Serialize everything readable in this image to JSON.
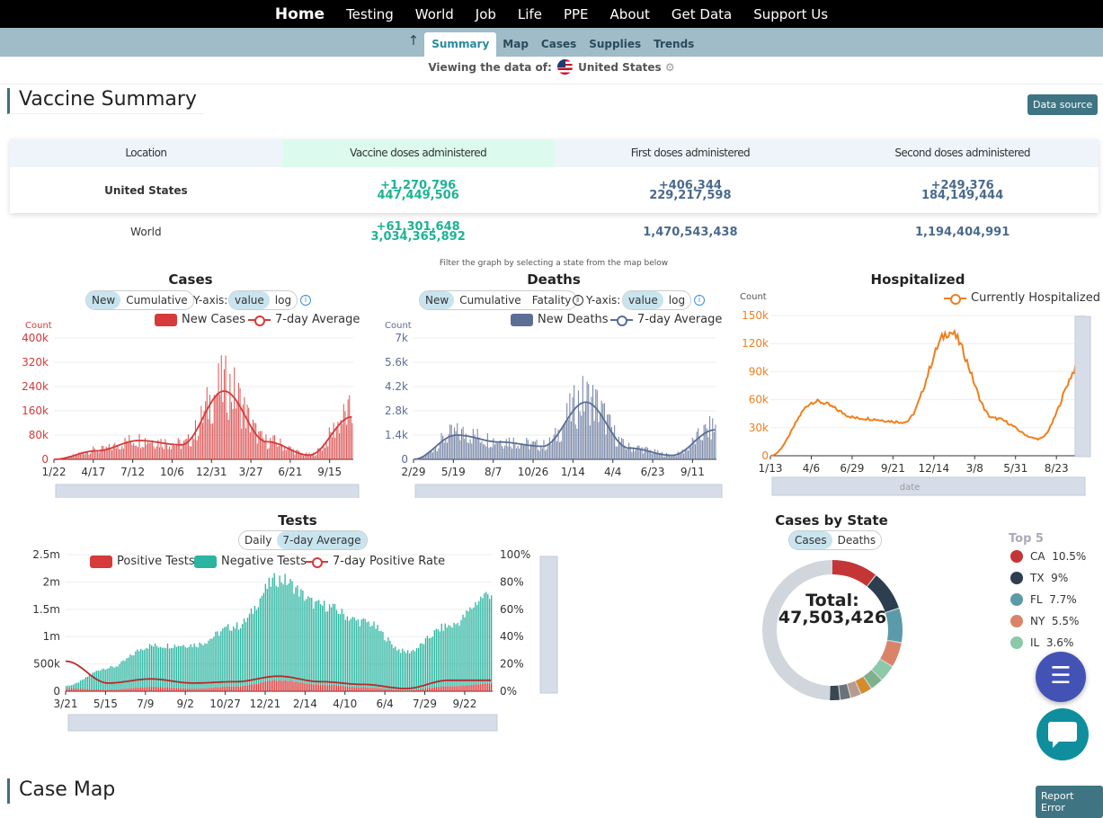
{
  "nav": {
    "items": [
      "Home",
      "Testing",
      "World",
      "Job",
      "Life",
      "PPE",
      "About",
      "Get Data",
      "Support Us"
    ]
  },
  "subnav": {
    "items": [
      "Summary",
      "Map",
      "Cases",
      "Supplies",
      "Trends"
    ],
    "active": "Summary"
  },
  "viewing": {
    "label": "Viewing the data of:",
    "country": "United States"
  },
  "vaccine_summary": {
    "title": "Vaccine Summary",
    "data_source_label": "Data source",
    "headers": [
      "Location",
      "Vaccine doses administered",
      "First doses administered",
      "Second doses administered"
    ],
    "rows": [
      {
        "location": "United States",
        "doses_delta": "+1,270,796",
        "doses": "447,449,506",
        "first_delta": "+406,344",
        "first": "229,217,598",
        "second_delta": "+249,376",
        "second": "184,149,444"
      },
      {
        "location": "World",
        "doses_delta": "+61,301,648",
        "doses": "3,034,365,892",
        "first": "1,470,543,438",
        "second": "1,194,404,991"
      }
    ]
  },
  "filter_note": "Filter the graph by selecting a state from the map below",
  "cases_chart": {
    "title": "Cases",
    "toggles": [
      "New",
      "Cumulative"
    ],
    "yaxis_label": "Y-axis:",
    "yaxis_toggles": [
      "value",
      "log"
    ],
    "legend": [
      "New Cases",
      "7-day Average"
    ],
    "ylabel": "Count",
    "yticks": [
      "400k",
      "320k",
      "240k",
      "160k",
      "80k",
      "0"
    ],
    "xticks": [
      "1/22",
      "4/17",
      "7/12",
      "10/6",
      "12/31",
      "3/27",
      "6/21",
      "9/15"
    ],
    "color": "#d63a3a"
  },
  "deaths_chart": {
    "title": "Deaths",
    "toggles": [
      "New",
      "Cumulative",
      "Fatality"
    ],
    "yaxis_label": "Y-axis:",
    "yaxis_toggles": [
      "value",
      "log"
    ],
    "legend": [
      "New Deaths",
      "7-day Average"
    ],
    "ylabel": "Count",
    "yticks": [
      "7k",
      "5.6k",
      "4.2k",
      "2.8k",
      "1.4k",
      "0"
    ],
    "xticks": [
      "2/29",
      "5/19",
      "8/7",
      "10/26",
      "1/14",
      "4/4",
      "6/23",
      "9/11"
    ],
    "color": "#5b6e95"
  },
  "hosp_chart": {
    "title": "Hospitalized",
    "legend": [
      "Currently Hospitalized"
    ],
    "ylabel": "Count",
    "yticks": [
      "150k",
      "120k",
      "90k",
      "60k",
      "30k",
      "0"
    ],
    "xticks": [
      "1/13",
      "4/6",
      "6/29",
      "9/21",
      "12/14",
      "3/8",
      "5/31",
      "8/23"
    ],
    "xlabel": "date",
    "color": "#f07f1d"
  },
  "tests_chart": {
    "title": "Tests",
    "toggles": [
      "Daily",
      "7-day Average"
    ],
    "legend": [
      "Positive Tests",
      "Negative Tests",
      "7-day Positive Rate"
    ],
    "yticks_left": [
      "2.5m",
      "2m",
      "1.5m",
      "1m",
      "500k",
      "0"
    ],
    "yticks_right": [
      "100%",
      "80%",
      "60%",
      "40%",
      "20%",
      "0%"
    ],
    "xticks": [
      "3/21",
      "5/15",
      "7/9",
      "9/2",
      "10/27",
      "12/21",
      "2/14",
      "4/10",
      "6/4",
      "7/29",
      "9/22"
    ],
    "colors": {
      "positive": "#d63a3a",
      "negative": "#2bb5a0"
    }
  },
  "state_chart": {
    "title": "Cases by State",
    "toggles": [
      "Cases",
      "Deaths"
    ],
    "total_label": "Total:",
    "total_value": "47,503,426",
    "top5_title": "Top 5",
    "top5": [
      {
        "state": "CA",
        "pct": "10.5%",
        "color": "#c43535"
      },
      {
        "state": "TX",
        "pct": "9%",
        "color": "#2c3e50"
      },
      {
        "state": "FL",
        "pct": "7.7%",
        "color": "#5b9aa8"
      },
      {
        "state": "NY",
        "pct": "5.5%",
        "color": "#d98468"
      },
      {
        "state": "IL",
        "pct": "3.6%",
        "color": "#8cc9a8"
      }
    ]
  },
  "case_map": {
    "title": "Case Map",
    "report_label": "Report Error"
  },
  "chart_data": [
    {
      "type": "bar",
      "title": "Cases",
      "ylabel": "Count",
      "ylim": [
        0,
        400000
      ],
      "x": [
        "1/22",
        "4/17",
        "7/12",
        "10/6",
        "12/31",
        "3/27",
        "6/21",
        "9/15"
      ],
      "series": [
        {
          "name": "New Cases",
          "values": [
            0,
            30000,
            65000,
            50000,
            240000,
            60000,
            15000,
            150000
          ]
        },
        {
          "name": "7-day Average",
          "values": [
            0,
            28000,
            62000,
            48000,
            225000,
            58000,
            14000,
            140000
          ]
        }
      ]
    },
    {
      "type": "bar",
      "title": "Deaths",
      "ylabel": "Count",
      "ylim": [
        0,
        7000
      ],
      "x": [
        "2/29",
        "5/19",
        "8/7",
        "10/26",
        "1/14",
        "4/4",
        "6/23",
        "9/11"
      ],
      "series": [
        {
          "name": "New Deaths",
          "values": [
            0,
            1500,
            1100,
            800,
            3500,
            700,
            250,
            1800
          ]
        },
        {
          "name": "7-day Average",
          "values": [
            0,
            1400,
            1000,
            750,
            3300,
            650,
            230,
            1700
          ]
        }
      ]
    },
    {
      "type": "line",
      "title": "Hospitalized",
      "ylabel": "Count",
      "xlabel": "date",
      "ylim": [
        0,
        150000
      ],
      "x": [
        "1/13",
        "4/6",
        "6/29",
        "9/21",
        "12/14",
        "3/8",
        "5/31",
        "8/23"
      ],
      "series": [
        {
          "name": "Currently Hospitalized",
          "values": [
            0,
            58000,
            40000,
            36000,
            132000,
            40000,
            18000,
            100000
          ]
        }
      ]
    },
    {
      "type": "bar",
      "title": "Tests",
      "ylim": [
        0,
        2500000
      ],
      "x": [
        "3/21",
        "5/15",
        "7/9",
        "9/2",
        "10/27",
        "12/21",
        "2/14",
        "4/10",
        "6/4",
        "7/29",
        "9/22"
      ],
      "series": [
        {
          "name": "Positive Tests",
          "values": [
            50000,
            30000,
            80000,
            50000,
            90000,
            200000,
            120000,
            70000,
            20000,
            90000,
            140000
          ]
        },
        {
          "name": "Negative Tests",
          "values": [
            50000,
            400000,
            750000,
            800000,
            1100000,
            1850000,
            1450000,
            1200000,
            700000,
            1100000,
            1650000
          ]
        },
        {
          "name": "7-day Positive Rate",
          "values": [
            22,
            6,
            9,
            6,
            7,
            11,
            7,
            5,
            2,
            8,
            8
          ]
        }
      ]
    },
    {
      "type": "pie",
      "title": "Cases by State",
      "categories": [
        "CA",
        "TX",
        "FL",
        "NY",
        "IL"
      ],
      "values": [
        10.5,
        9,
        7.7,
        5.5,
        3.6
      ]
    }
  ]
}
